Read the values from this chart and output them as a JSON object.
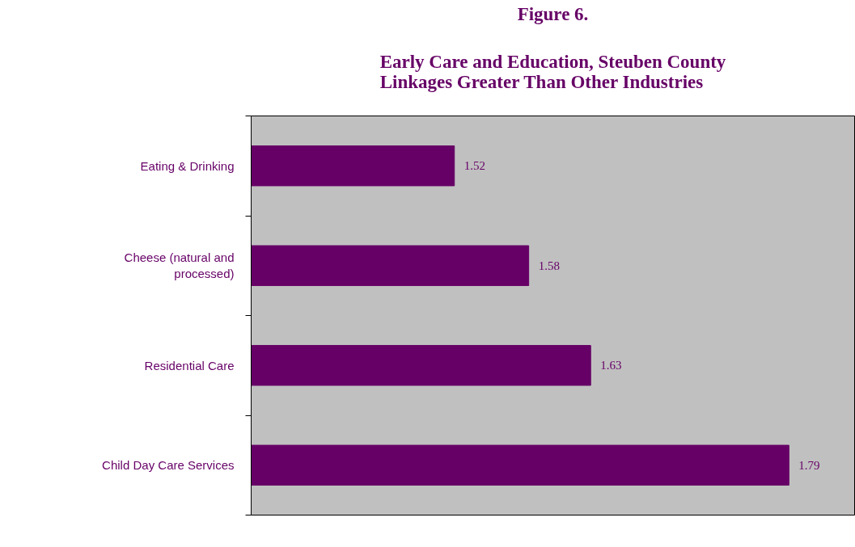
{
  "chart_data": {
    "type": "bar",
    "orientation": "horizontal",
    "title": "Figure 6.",
    "subtitle": "Early Care and Education, Steuben County Linkages Greater Than Other Industries",
    "categories": [
      "Eating & Drinking",
      "Cheese (natural and processed)",
      "Residential Care",
      "Child Day Care Services"
    ],
    "values": [
      1.52,
      1.58,
      1.63,
      1.79
    ],
    "color": "#660066",
    "xlim": [
      1.356,
      1.843
    ],
    "data_labels": true,
    "grid": false,
    "tick_labels": "y"
  }
}
